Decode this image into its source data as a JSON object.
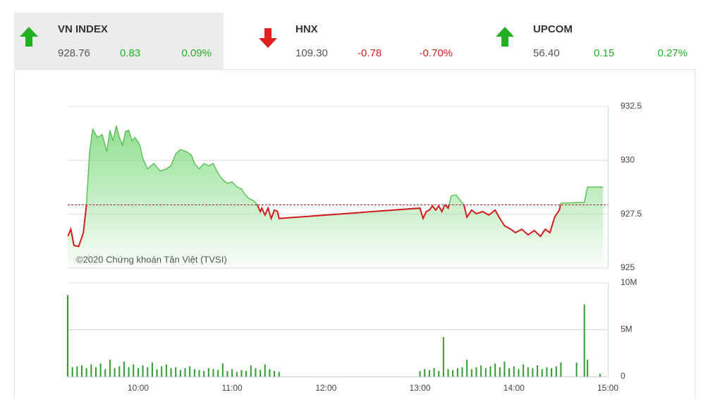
{
  "indices": [
    {
      "name": "VN INDEX",
      "value": "928.76",
      "change": "0.83",
      "percent": "0.09%"
    },
    {
      "name": "HNX",
      "value": "109.30",
      "change": "-0.78",
      "percent": "-0.70%"
    },
    {
      "name": "UPCOM",
      "value": "56.40",
      "change": "0.15",
      "percent": "0.27%"
    }
  ],
  "copyright": "©2020 Chứng khoán Tân Việt (TVSI)",
  "chart_data": [
    {
      "type": "line",
      "xlim": [
        "09:15",
        "15:00"
      ],
      "ylim": [
        925,
        932.5
      ],
      "yticks": [
        925,
        927.5,
        930,
        932.5
      ],
      "grid": true,
      "reference": 927.93,
      "reference_color": "#b22222",
      "color_above": "#5cc25c",
      "color_below": "#d01c1c",
      "area_color": "#7ed97e",
      "series": [
        {
          "x": [
            "09:15",
            "09:17",
            "09:19",
            "09:22",
            "09:25",
            "09:27",
            "09:29",
            "09:31",
            "09:34",
            "09:37",
            "09:40",
            "09:42",
            "09:44",
            "09:46",
            "09:48",
            "09:50",
            "09:52",
            "09:54",
            "09:56",
            "09:58",
            "10:01",
            "10:03",
            "10:06",
            "10:10",
            "10:14",
            "10:18",
            "10:21",
            "10:24",
            "10:27",
            "10:31",
            "10:34",
            "10:36",
            "10:39",
            "10:42",
            "10:45",
            "10:48",
            "10:51",
            "10:54",
            "10:57",
            "11:00",
            "11:03",
            "11:06",
            "11:08",
            "11:10",
            "11:12",
            "11:14",
            "11:16",
            "11:18",
            "11:19",
            "11:21",
            "11:23",
            "11:25",
            "11:27",
            "11:29",
            "11:30",
            "13:00",
            "13:02",
            "13:04",
            "13:06",
            "13:08",
            "13:10",
            "13:12",
            "13:14",
            "13:16",
            "13:18",
            "13:20",
            "13:23",
            "13:26",
            "13:28",
            "13:30",
            "13:33",
            "13:36",
            "13:40",
            "13:44",
            "13:48",
            "13:51",
            "13:54",
            "13:58",
            "14:01",
            "14:05",
            "14:09",
            "14:13",
            "14:17",
            "14:20",
            "14:23",
            "14:26",
            "14:29",
            "14:30",
            "14:45",
            "14:47",
            "14:57"
          ],
          "values": [
            926.47,
            926.8,
            926.05,
            926.0,
            926.64,
            927.95,
            930.4,
            931.45,
            931.06,
            931.2,
            930.4,
            931.4,
            930.9,
            931.6,
            931.06,
            930.7,
            931.35,
            931.4,
            930.9,
            931.06,
            930.73,
            930.08,
            929.6,
            929.85,
            929.5,
            929.6,
            929.75,
            930.3,
            930.5,
            930.4,
            930.24,
            929.85,
            929.6,
            929.85,
            929.75,
            929.85,
            929.4,
            929.1,
            928.93,
            929.0,
            928.77,
            928.67,
            928.44,
            928.27,
            928.18,
            928.11,
            927.95,
            927.62,
            927.78,
            927.46,
            927.78,
            927.3,
            927.69,
            927.62,
            927.3,
            927.78,
            927.3,
            927.62,
            927.69,
            927.88,
            927.69,
            927.88,
            927.62,
            927.95,
            927.78,
            928.34,
            928.4,
            928.11,
            927.95,
            927.36,
            927.69,
            927.52,
            927.62,
            927.46,
            927.69,
            927.3,
            926.96,
            926.8,
            926.64,
            926.8,
            926.54,
            926.74,
            926.47,
            926.8,
            926.64,
            927.36,
            927.69,
            928.01,
            928.05,
            928.76,
            928.76
          ]
        }
      ]
    },
    {
      "type": "bar",
      "xlim": [
        "09:15",
        "15:00"
      ],
      "xticks": [
        "10:00",
        "11:00",
        "12:00",
        "13:00",
        "14:00",
        "15:00"
      ],
      "ylim": [
        0,
        10000000
      ],
      "yticks": [
        0,
        {
          "value": 5000000,
          "label": "5M"
        },
        {
          "value": 10000000,
          "label": "10M"
        }
      ],
      "grid": true,
      "color": "#2e9e2e",
      "x": [
        "09:15",
        "09:18",
        "09:21",
        "09:24",
        "09:27",
        "09:30",
        "09:33",
        "09:36",
        "09:39",
        "09:42",
        "09:45",
        "09:48",
        "09:51",
        "09:54",
        "09:57",
        "10:00",
        "10:03",
        "10:06",
        "10:09",
        "10:12",
        "10:15",
        "10:18",
        "10:21",
        "10:24",
        "10:27",
        "10:30",
        "10:33",
        "10:36",
        "10:39",
        "10:42",
        "10:45",
        "10:48",
        "10:51",
        "10:54",
        "10:57",
        "11:00",
        "11:03",
        "11:06",
        "11:09",
        "11:12",
        "11:15",
        "11:18",
        "11:21",
        "11:24",
        "11:27",
        "11:30",
        "13:00",
        "13:03",
        "13:06",
        "13:09",
        "13:12",
        "13:15",
        "13:18",
        "13:21",
        "13:24",
        "13:27",
        "13:30",
        "13:33",
        "13:36",
        "13:39",
        "13:42",
        "13:45",
        "13:48",
        "13:51",
        "13:54",
        "13:57",
        "14:00",
        "14:03",
        "14:06",
        "14:09",
        "14:12",
        "14:15",
        "14:18",
        "14:21",
        "14:24",
        "14:27",
        "14:30",
        "14:40",
        "14:45",
        "14:47",
        "14:55"
      ],
      "values": [
        8700000,
        1000000,
        1100000,
        1200000,
        900000,
        1300000,
        1000000,
        1400000,
        800000,
        1800000,
        900000,
        1100000,
        1600000,
        1000000,
        1300000,
        900000,
        1200000,
        1000000,
        1500000,
        800000,
        1100000,
        1300000,
        900000,
        1000000,
        700000,
        900000,
        1100000,
        800000,
        700000,
        600000,
        900000,
        800000,
        700000,
        1400000,
        600000,
        800000,
        500000,
        700000,
        600000,
        1200000,
        900000,
        700000,
        1300000,
        800000,
        600000,
        500000,
        600000,
        800000,
        700000,
        900000,
        600000,
        4200000,
        800000,
        700000,
        900000,
        1000000,
        1800000,
        800000,
        1000000,
        1200000,
        900000,
        1100000,
        1400000,
        1000000,
        1600000,
        900000,
        1100000,
        800000,
        1300000,
        1000000,
        900000,
        1200000,
        800000,
        1000000,
        900000,
        1100000,
        1500000,
        1500000,
        7700000,
        1800000,
        300000
      ]
    }
  ]
}
